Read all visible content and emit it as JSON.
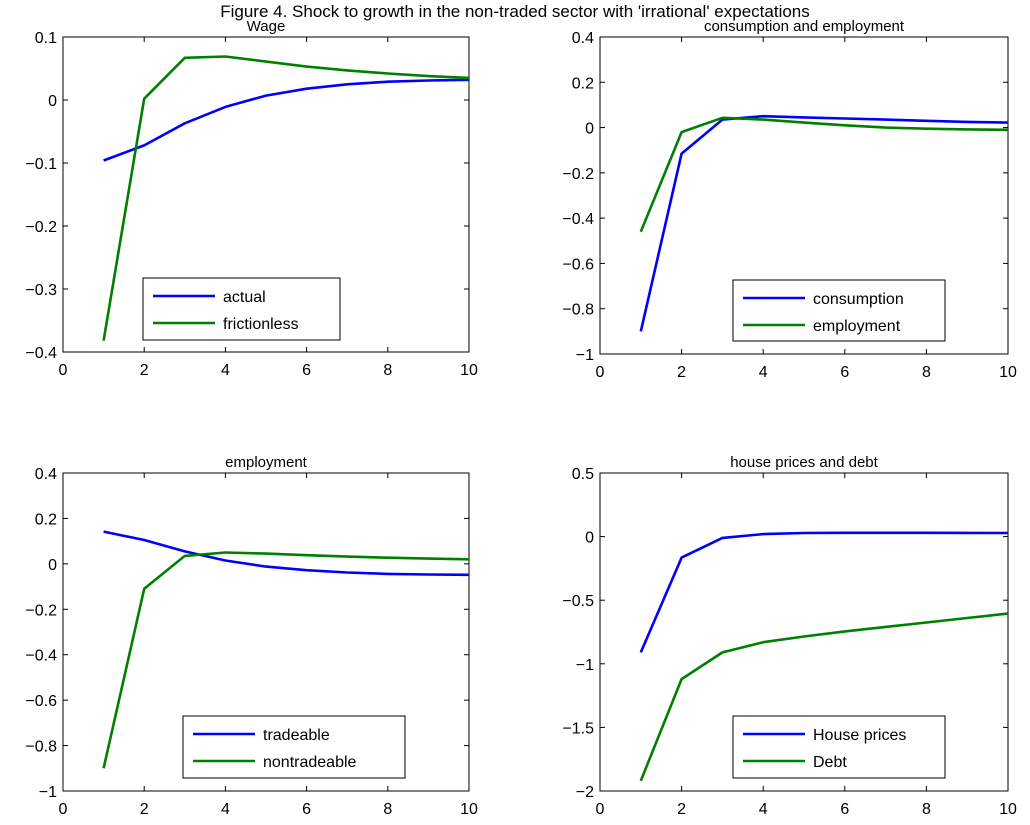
{
  "figure_title": "Figure 4. Shock to growth in the non-traded sector with 'irrational' expectations",
  "chart_data": [
    {
      "type": "line",
      "title": "Wage",
      "x": [
        1,
        2,
        3,
        4,
        5,
        6,
        7,
        8,
        9,
        10
      ],
      "xlim": [
        0,
        10
      ],
      "ylim": [
        -0.4,
        0.1
      ],
      "xticks": [
        0,
        2,
        4,
        6,
        8,
        10
      ],
      "yticks": [
        -0.4,
        -0.3,
        -0.2,
        -0.1,
        0,
        0.1
      ],
      "xtick_labels": [
        "0",
        "2",
        "4",
        "6",
        "8",
        "10"
      ],
      "ytick_labels": [
        "−0.4",
        "−0.3",
        "−0.2",
        "−0.1",
        "0",
        "0.1"
      ],
      "legend_position": "bottom-center",
      "series": [
        {
          "name": "actual",
          "color": "#0000ff",
          "values": [
            -0.096,
            -0.072,
            -0.037,
            -0.011,
            0.007,
            0.018,
            0.025,
            0.029,
            0.031,
            0.032
          ]
        },
        {
          "name": "frictionless",
          "color": "#007f00",
          "values": [
            -0.382,
            0.002,
            0.067,
            0.069,
            0.061,
            0.053,
            0.047,
            0.042,
            0.038,
            0.035
          ]
        }
      ]
    },
    {
      "type": "line",
      "title": "consumption and employment",
      "x": [
        1,
        2,
        3,
        4,
        5,
        6,
        7,
        8,
        9,
        10
      ],
      "xlim": [
        0,
        10
      ],
      "ylim": [
        -1,
        0.4
      ],
      "xticks": [
        0,
        2,
        4,
        6,
        8,
        10
      ],
      "yticks": [
        -1,
        -0.8,
        -0.6,
        -0.4,
        -0.2,
        0,
        0.2,
        0.4
      ],
      "xtick_labels": [
        "0",
        "2",
        "4",
        "6",
        "8",
        "10"
      ],
      "ytick_labels": [
        "−1",
        "−0.8",
        "−0.6",
        "−0.4",
        "−0.2",
        "0",
        "0.2",
        "0.4"
      ],
      "legend_position": "bottom-right",
      "series": [
        {
          "name": "consumption",
          "color": "#0000ff",
          "values": [
            -0.9,
            -0.115,
            0.035,
            0.05,
            0.045,
            0.04,
            0.035,
            0.03,
            0.025,
            0.022
          ]
        },
        {
          "name": "employment",
          "color": "#007f00",
          "values": [
            -0.46,
            -0.02,
            0.043,
            0.035,
            0.022,
            0.01,
            0.0,
            -0.005,
            -0.008,
            -0.01
          ]
        }
      ]
    },
    {
      "type": "line",
      "title": "employment",
      "x": [
        1,
        2,
        3,
        4,
        5,
        6,
        7,
        8,
        9,
        10
      ],
      "xlim": [
        0,
        10
      ],
      "ylim": [
        -1,
        0.4
      ],
      "xticks": [
        0,
        2,
        4,
        6,
        8,
        10
      ],
      "yticks": [
        -1,
        -0.8,
        -0.6,
        -0.4,
        -0.2,
        0,
        0.2,
        0.4
      ],
      "xtick_labels": [
        "0",
        "2",
        "4",
        "6",
        "8",
        "10"
      ],
      "ytick_labels": [
        "−1",
        "−0.8",
        "−0.6",
        "−0.4",
        "−0.2",
        "0",
        "0.2",
        "0.4"
      ],
      "legend_position": "bottom-right",
      "series": [
        {
          "name": "tradeable",
          "color": "#0000ff",
          "values": [
            0.142,
            0.105,
            0.055,
            0.015,
            -0.012,
            -0.028,
            -0.038,
            -0.044,
            -0.047,
            -0.048
          ]
        },
        {
          "name": "nontradeable",
          "color": "#007f00",
          "values": [
            -0.9,
            -0.11,
            0.035,
            0.05,
            0.045,
            0.038,
            0.032,
            0.027,
            0.023,
            0.02
          ]
        }
      ]
    },
    {
      "type": "line",
      "title": "house prices and debt",
      "x": [
        1,
        2,
        3,
        4,
        5,
        6,
        7,
        8,
        9,
        10
      ],
      "xlim": [
        0,
        10
      ],
      "ylim": [
        -2,
        0.5
      ],
      "xticks": [
        0,
        2,
        4,
        6,
        8,
        10
      ],
      "yticks": [
        -2,
        -1.5,
        -1,
        -0.5,
        0,
        0.5
      ],
      "xtick_labels": [
        "0",
        "2",
        "4",
        "6",
        "8",
        "10"
      ],
      "ytick_labels": [
        "−2",
        "−1.5",
        "−1",
        "−0.5",
        "0",
        "0.5"
      ],
      "legend_position": "bottom-right",
      "series": [
        {
          "name": "House prices",
          "color": "#0000ff",
          "values": [
            -0.91,
            -0.165,
            -0.01,
            0.02,
            0.028,
            0.03,
            0.03,
            0.03,
            0.029,
            0.028
          ]
        },
        {
          "name": "Debt",
          "color": "#007f00",
          "values": [
            -1.92,
            -1.12,
            -0.91,
            -0.83,
            -0.785,
            -0.745,
            -0.71,
            -0.675,
            -0.64,
            -0.605
          ]
        }
      ]
    }
  ]
}
